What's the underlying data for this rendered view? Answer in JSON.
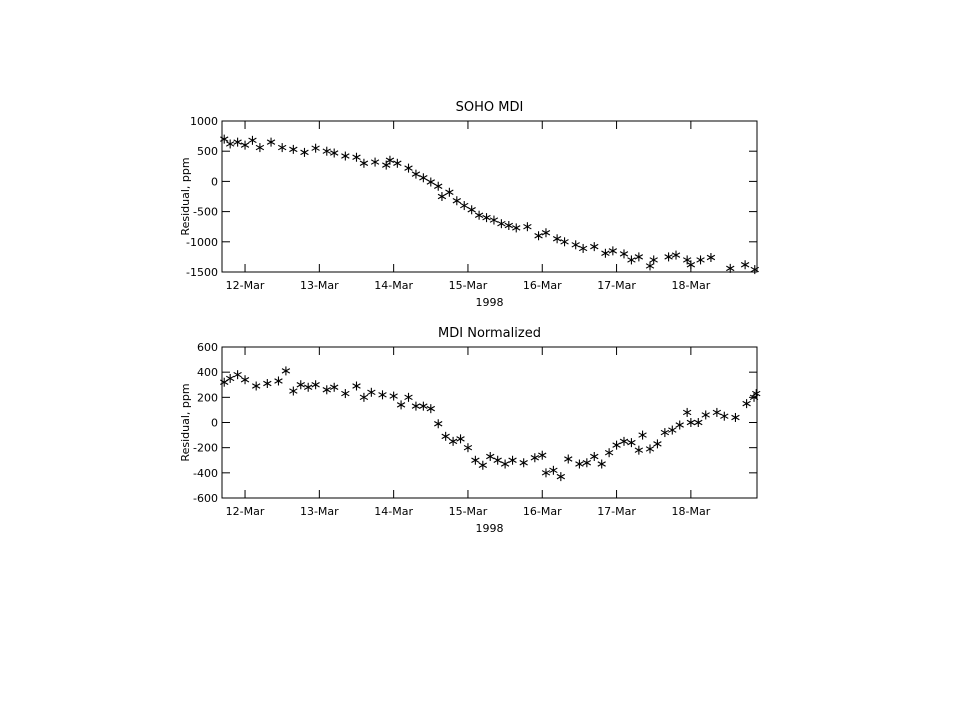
{
  "chart_data": [
    {
      "type": "scatter",
      "title": "SOHO MDI",
      "ylabel": "Residual, ppm",
      "xlabel": "1998",
      "color": "#000000",
      "xlim": [
        11.69,
        18.89
      ],
      "ylim": [
        -1500,
        1000
      ],
      "xticks": [
        {
          "value": 12,
          "label": "12-Mar"
        },
        {
          "value": 13,
          "label": "13-Mar"
        },
        {
          "value": 14,
          "label": "14-Mar"
        },
        {
          "value": 15,
          "label": "15-Mar"
        },
        {
          "value": 16,
          "label": "16-Mar"
        },
        {
          "value": 17,
          "label": "17-Mar"
        },
        {
          "value": 18,
          "label": "18-Mar"
        }
      ],
      "yticks": [
        1000,
        500,
        0,
        -500,
        -1000,
        -1500
      ],
      "x": [
        11.72,
        11.8,
        11.9,
        12.0,
        12.1,
        12.2,
        12.35,
        12.5,
        12.65,
        12.8,
        12.95,
        13.1,
        13.2,
        13.35,
        13.5,
        13.6,
        13.75,
        13.9,
        13.95,
        14.05,
        14.2,
        14.3,
        14.4,
        14.5,
        14.6,
        14.65,
        14.75,
        14.85,
        14.95,
        15.05,
        15.15,
        15.25,
        15.35,
        15.45,
        15.55,
        15.65,
        15.8,
        15.95,
        16.05,
        16.2,
        16.3,
        16.45,
        16.55,
        16.7,
        16.85,
        16.95,
        17.1,
        17.2,
        17.3,
        17.45,
        17.5,
        17.7,
        17.8,
        17.95,
        18.0,
        18.13,
        18.27,
        18.53,
        18.73,
        18.86
      ],
      "values": [
        700,
        620,
        650,
        600,
        680,
        560,
        650,
        560,
        530,
        480,
        550,
        500,
        470,
        420,
        400,
        300,
        320,
        270,
        350,
        300,
        220,
        120,
        60,
        -10,
        -80,
        -250,
        -180,
        -320,
        -400,
        -470,
        -560,
        -600,
        -640,
        -700,
        -730,
        -770,
        -750,
        -900,
        -850,
        -950,
        -1000,
        -1050,
        -1110,
        -1080,
        -1190,
        -1150,
        -1200,
        -1300,
        -1250,
        -1400,
        -1300,
        -1250,
        -1220,
        -1300,
        -1380,
        -1300,
        -1260,
        -1440,
        -1380,
        -1460
      ]
    },
    {
      "type": "scatter",
      "title": "MDI Normalized",
      "ylabel": "Residual, ppm",
      "xlabel": "1998",
      "color": "#000000",
      "xlim": [
        11.69,
        18.89
      ],
      "ylim": [
        -600,
        600
      ],
      "xticks": [
        {
          "value": 12,
          "label": "12-Mar"
        },
        {
          "value": 13,
          "label": "13-Mar"
        },
        {
          "value": 14,
          "label": "14-Mar"
        },
        {
          "value": 15,
          "label": "15-Mar"
        },
        {
          "value": 16,
          "label": "16-Mar"
        },
        {
          "value": 17,
          "label": "17-Mar"
        },
        {
          "value": 18,
          "label": "18-Mar"
        }
      ],
      "yticks": [
        600,
        400,
        200,
        0,
        -200,
        -400,
        -600
      ],
      "x": [
        11.72,
        11.8,
        11.9,
        12.0,
        12.15,
        12.3,
        12.45,
        12.55,
        12.65,
        12.75,
        12.85,
        12.95,
        13.1,
        13.2,
        13.35,
        13.5,
        13.6,
        13.7,
        13.85,
        14.0,
        14.1,
        14.2,
        14.3,
        14.4,
        14.5,
        14.6,
        14.7,
        14.8,
        14.9,
        15.0,
        15.1,
        15.2,
        15.3,
        15.4,
        15.5,
        15.6,
        15.75,
        15.9,
        16.0,
        16.05,
        16.15,
        16.25,
        16.35,
        16.5,
        16.6,
        16.7,
        16.8,
        16.9,
        17.0,
        17.1,
        17.2,
        17.3,
        17.35,
        17.45,
        17.55,
        17.65,
        17.75,
        17.85,
        17.95,
        18.0,
        18.1,
        18.2,
        18.35,
        18.45,
        18.6,
        18.75,
        18.85,
        18.88
      ],
      "values": [
        320,
        350,
        380,
        340,
        290,
        310,
        330,
        410,
        250,
        300,
        280,
        300,
        260,
        280,
        230,
        290,
        200,
        240,
        220,
        210,
        140,
        200,
        130,
        130,
        110,
        -10,
        -110,
        -150,
        -130,
        -200,
        -300,
        -340,
        -270,
        -300,
        -330,
        -300,
        -320,
        -280,
        -260,
        -400,
        -380,
        -430,
        -290,
        -330,
        -320,
        -270,
        -330,
        -240,
        -180,
        -150,
        -160,
        -220,
        -100,
        -210,
        -170,
        -80,
        -60,
        -20,
        80,
        0,
        0,
        60,
        80,
        50,
        40,
        150,
        200,
        230
      ]
    }
  ]
}
